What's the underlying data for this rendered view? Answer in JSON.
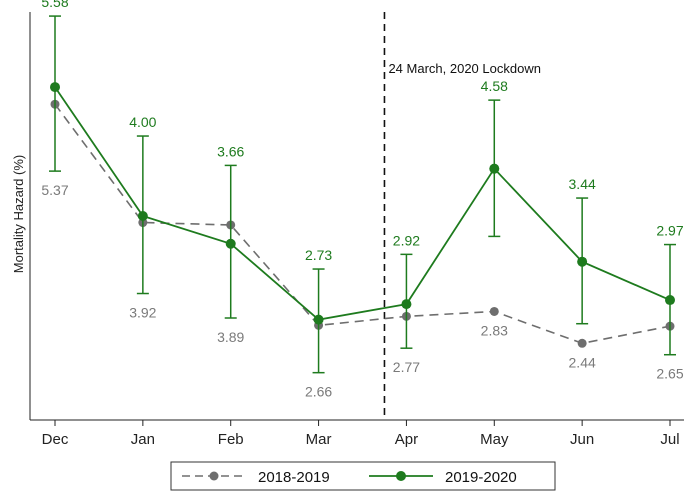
{
  "chart_data": {
    "type": "line",
    "title": "",
    "xlabel": "",
    "ylabel": "Mortality Hazard (%)",
    "categories": [
      "Dec",
      "Jan",
      "Feb",
      "Mar",
      "Apr",
      "May",
      "Jun",
      "Jul"
    ],
    "ylim": [
      1.5,
      6.5
    ],
    "series": [
      {
        "name": "2018-2019",
        "color": "#6e6e6e",
        "style": "dashed",
        "values": [
          5.37,
          3.92,
          3.89,
          2.66,
          2.77,
          2.83,
          2.44,
          2.65
        ],
        "labels": [
          "5.37",
          "3.92",
          "3.89",
          "2.66",
          "2.77",
          "2.83",
          "2.44",
          "2.65"
        ],
        "label_position": "below"
      },
      {
        "name": "2019-2020",
        "color": "#1e7b1e",
        "style": "solid",
        "values": [
          5.58,
          4.0,
          3.66,
          2.73,
          2.92,
          4.58,
          3.44,
          2.97
        ],
        "ci_low": [
          4.55,
          3.05,
          2.75,
          2.08,
          2.38,
          3.75,
          2.68,
          2.3
        ],
        "ci_high": [
          6.45,
          4.98,
          4.62,
          3.35,
          3.53,
          5.42,
          4.22,
          3.65
        ],
        "labels": [
          "5.58",
          "4.00",
          "3.66",
          "2.73",
          "2.92",
          "4.58",
          "3.44",
          "2.97"
        ],
        "label_position": "above"
      }
    ],
    "annotation": {
      "text": "24 March, 2020 Lockdown",
      "at_category_position": 3.75
    },
    "grid": false,
    "legend_position": "bottom"
  }
}
